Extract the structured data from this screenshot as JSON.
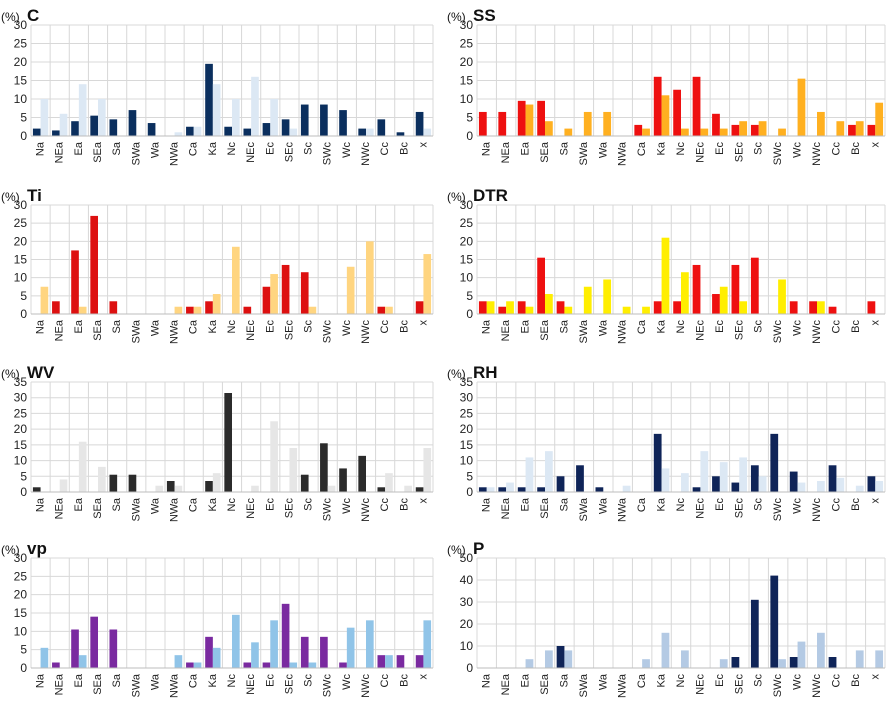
{
  "categories": [
    "Na",
    "NEa",
    "Ea",
    "SEa",
    "Sa",
    "SWa",
    "Wa",
    "NWa",
    "Ca",
    "Ka",
    "Nc",
    "NEc",
    "Ec",
    "SEc",
    "Sc",
    "SWc",
    "Wc",
    "NWc",
    "Cc",
    "Bc",
    "x"
  ],
  "colors": {
    "C": {
      "dark": "#0b2f5e",
      "light": "#dce8f4"
    },
    "SS": {
      "dark": "#ee1010",
      "light": "#ffb020"
    },
    "Ti": {
      "dark": "#dd1010",
      "light": "#ffd580"
    },
    "DTR": {
      "dark": "#ee1010",
      "light": "#ffee00"
    },
    "WV": {
      "dark": "#2b2b2b",
      "light": "#e6e6e6"
    },
    "RH": {
      "dark": "#0f2458",
      "light": "#dce8f4"
    },
    "vp": {
      "dark": "#7a2aa0",
      "light": "#90c4e8"
    },
    "P": {
      "dark": "#0f2458",
      "light": "#b4cae4"
    },
    "grid": "#d8d8d8",
    "frame": "#cfcfcf"
  },
  "chart_data": [
    {
      "id": "C",
      "type": "bar",
      "title": "C",
      "ylabel": "(%)",
      "ylim": [
        0,
        30
      ],
      "yticks": [
        0,
        5,
        10,
        15,
        20,
        25,
        30
      ],
      "categories": [
        "Na",
        "NEa",
        "Ea",
        "SEa",
        "Sa",
        "SWa",
        "Wa",
        "NWa",
        "Ca",
        "Ka",
        "Nc",
        "NEc",
        "Ec",
        "SEc",
        "Sc",
        "SWc",
        "Wc",
        "NWc",
        "Cc",
        "Bc",
        "x"
      ],
      "series": [
        {
          "name": "dark",
          "values": [
            2,
            1.5,
            4,
            5.5,
            4.5,
            7,
            3.5,
            0,
            2.5,
            19.5,
            2.5,
            2,
            3.5,
            4.5,
            8.5,
            8.5,
            7,
            2,
            4.5,
            1,
            6.5
          ]
        },
        {
          "name": "light",
          "values": [
            10,
            6,
            14,
            10,
            0,
            0,
            0,
            1,
            2.5,
            14,
            10,
            16,
            10,
            2,
            0,
            0,
            0,
            2,
            0,
            0,
            2
          ]
        }
      ]
    },
    {
      "id": "SS",
      "type": "bar",
      "title": "SS",
      "ylabel": "(%)",
      "ylim": [
        0,
        30
      ],
      "yticks": [
        0,
        5,
        10,
        15,
        20,
        25,
        30
      ],
      "categories": [
        "Na",
        "NEa",
        "Ea",
        "SEa",
        "Sa",
        "SWa",
        "Wa",
        "NWa",
        "Ca",
        "Ka",
        "Nc",
        "NEc",
        "Ec",
        "SEc",
        "Sc",
        "SWc",
        "Wc",
        "NWc",
        "Cc",
        "Bc",
        "x"
      ],
      "series": [
        {
          "name": "dark",
          "values": [
            6.5,
            6.5,
            9.5,
            9.5,
            0,
            0,
            0,
            0,
            3,
            16,
            12.5,
            16,
            6,
            3,
            3,
            0,
            0,
            0,
            0,
            3,
            3
          ]
        },
        {
          "name": "light",
          "values": [
            0,
            0,
            8.5,
            4,
            2,
            6.5,
            6.5,
            0,
            2,
            11,
            2,
            2,
            2,
            4,
            4,
            2,
            15.5,
            6.5,
            4,
            4,
            9
          ]
        }
      ]
    },
    {
      "id": "Ti",
      "type": "bar",
      "title": "Ti",
      "ylabel": "(%)",
      "ylim": [
        0,
        30
      ],
      "yticks": [
        0,
        5,
        10,
        15,
        20,
        25,
        30
      ],
      "categories": [
        "Na",
        "NEa",
        "Ea",
        "SEa",
        "Sa",
        "SWa",
        "Wa",
        "NWa",
        "Ca",
        "Ka",
        "Nc",
        "NEc",
        "Ec",
        "SEc",
        "Sc",
        "SWc",
        "Wc",
        "NWc",
        "Cc",
        "Bc",
        "x"
      ],
      "series": [
        {
          "name": "dark",
          "values": [
            0,
            3.5,
            17.5,
            27,
            3.5,
            0,
            0,
            0,
            2,
            3.5,
            0,
            2,
            7.5,
            13.5,
            11.5,
            0,
            0,
            0,
            2,
            0,
            3.5
          ]
        },
        {
          "name": "light",
          "values": [
            7.5,
            0,
            2,
            0,
            0,
            0,
            0,
            2,
            2,
            5.5,
            18.5,
            0,
            11,
            0,
            2,
            0,
            13,
            20,
            2,
            0,
            16.5
          ]
        }
      ]
    },
    {
      "id": "DTR",
      "type": "bar",
      "title": "DTR",
      "ylabel": "(%)",
      "ylim": [
        0,
        30
      ],
      "yticks": [
        0,
        5,
        10,
        15,
        20,
        25,
        30
      ],
      "categories": [
        "Na",
        "NEa",
        "Ea",
        "SEa",
        "Sa",
        "SWa",
        "Wa",
        "NWa",
        "Ca",
        "Ka",
        "Nc",
        "NEc",
        "Ec",
        "SEc",
        "Sc",
        "SWc",
        "Wc",
        "NWc",
        "Cc",
        "Bc",
        "x"
      ],
      "series": [
        {
          "name": "dark",
          "values": [
            3.5,
            2,
            3.5,
            15.5,
            3.5,
            0,
            0,
            0,
            0,
            3.5,
            3.5,
            13.5,
            5.5,
            13.5,
            15.5,
            0,
            3.5,
            3.5,
            2,
            0,
            3.5
          ]
        },
        {
          "name": "light",
          "values": [
            3.5,
            3.5,
            2,
            5.5,
            2,
            7.5,
            9.5,
            2,
            2,
            21,
            11.5,
            0,
            7.5,
            3.5,
            0,
            9.5,
            0,
            3.5,
            0,
            0,
            0
          ]
        }
      ]
    },
    {
      "id": "WV",
      "type": "bar",
      "title": "WV",
      "ylabel": "(%)",
      "ylim": [
        0,
        35
      ],
      "yticks": [
        0,
        5,
        10,
        15,
        20,
        25,
        30,
        35
      ],
      "categories": [
        "Na",
        "NEa",
        "Ea",
        "SEa",
        "Sa",
        "SWa",
        "Wa",
        "NWa",
        "Ca",
        "Ka",
        "Nc",
        "NEc",
        "Ec",
        "SEc",
        "Sc",
        "SWc",
        "Wc",
        "NWc",
        "Cc",
        "Bc",
        "x"
      ],
      "series": [
        {
          "name": "dark",
          "values": [
            1.5,
            0,
            0,
            0,
            5.5,
            5.5,
            0,
            3.5,
            0,
            3.5,
            31.5,
            0,
            0,
            0,
            5.5,
            15.5,
            7.5,
            11.5,
            1.5,
            0,
            1.5
          ]
        },
        {
          "name": "light",
          "values": [
            0,
            4,
            16,
            8,
            0,
            0,
            2,
            2,
            0,
            6,
            0,
            2,
            22.5,
            14,
            0,
            2,
            0,
            0,
            6,
            2,
            14
          ]
        }
      ]
    },
    {
      "id": "RH",
      "type": "bar",
      "title": "RH",
      "ylabel": "(%)",
      "ylim": [
        0,
        35
      ],
      "yticks": [
        0,
        5,
        10,
        15,
        20,
        25,
        30,
        35
      ],
      "categories": [
        "Na",
        "NEa",
        "Ea",
        "SEa",
        "Sa",
        "SWa",
        "Wa",
        "NWa",
        "Ca",
        "Ka",
        "Nc",
        "NEc",
        "Ec",
        "SEc",
        "Sc",
        "SWc",
        "Wc",
        "NWc",
        "Cc",
        "Bc",
        "x"
      ],
      "series": [
        {
          "name": "dark",
          "values": [
            1.5,
            1.5,
            1.5,
            1.5,
            5,
            8.5,
            1.5,
            0,
            0,
            18.5,
            0,
            1.5,
            5,
            3,
            8.5,
            18.5,
            6.5,
            0,
            8.5,
            0,
            5
          ]
        },
        {
          "name": "light",
          "values": [
            1.5,
            3,
            11,
            13,
            0,
            0,
            0,
            2,
            0,
            7.5,
            6,
            13,
            9.5,
            11,
            5,
            0,
            3,
            3.5,
            4.5,
            2,
            3.5
          ]
        }
      ]
    },
    {
      "id": "vp",
      "type": "bar",
      "title": "vp",
      "ylabel": "(%)",
      "ylim": [
        0,
        30
      ],
      "yticks": [
        0,
        5,
        10,
        15,
        20,
        25,
        30
      ],
      "categories": [
        "Na",
        "NEa",
        "Ea",
        "SEa",
        "Sa",
        "SWa",
        "Wa",
        "NWa",
        "Ca",
        "Ka",
        "Nc",
        "NEc",
        "Ec",
        "SEc",
        "Sc",
        "SWc",
        "Wc",
        "NWc",
        "Cc",
        "Bc",
        "x"
      ],
      "series": [
        {
          "name": "dark",
          "values": [
            0,
            1.5,
            10.5,
            14,
            10.5,
            0,
            0,
            0,
            1.5,
            8.5,
            0,
            1.5,
            1.5,
            17.5,
            8.5,
            8.5,
            1.5,
            0,
            3.5,
            3.5,
            3.5
          ]
        },
        {
          "name": "light",
          "values": [
            5.5,
            0,
            3.5,
            0,
            0,
            0,
            0,
            3.5,
            1.5,
            5.5,
            14.5,
            7,
            13,
            1.5,
            1.5,
            0,
            11,
            13,
            3.5,
            0,
            13
          ]
        }
      ]
    },
    {
      "id": "P",
      "type": "bar",
      "title": "P",
      "ylabel": "(%)",
      "ylim": [
        0,
        50
      ],
      "yticks": [
        0,
        10,
        20,
        30,
        40,
        50
      ],
      "categories": [
        "Na",
        "NEa",
        "Ea",
        "SEa",
        "Sa",
        "SWa",
        "Wa",
        "NWa",
        "Ca",
        "Ka",
        "Nc",
        "NEc",
        "Ec",
        "SEc",
        "Sc",
        "SWc",
        "Wc",
        "NWc",
        "Cc",
        "Bc",
        "x"
      ],
      "series": [
        {
          "name": "dark",
          "values": [
            0,
            0,
            0,
            0,
            10,
            0,
            0,
            0,
            0,
            0,
            0,
            0,
            0,
            5,
            31,
            42,
            5,
            0,
            5,
            0,
            0
          ]
        },
        {
          "name": "light",
          "values": [
            0,
            0,
            4,
            8,
            8,
            0,
            0,
            0,
            4,
            16,
            8,
            0,
            4,
            0,
            0,
            4,
            12,
            16,
            0,
            8,
            8
          ]
        }
      ]
    }
  ]
}
